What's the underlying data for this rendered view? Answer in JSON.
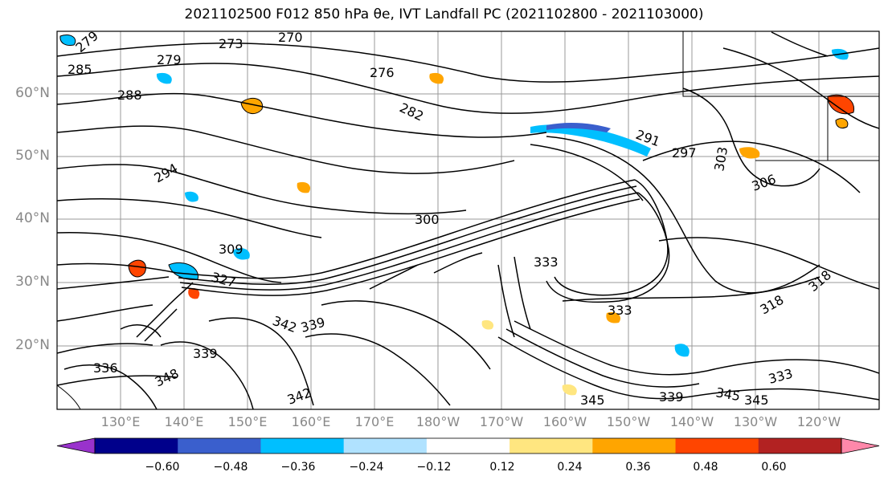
{
  "title": "2021102500 F012 850 hPa θe, IVT Landfall PC (2021102800 - 2021103000)",
  "lat_labels": [
    "60°N",
    "50°N",
    "40°N",
    "30°N",
    "20°N"
  ],
  "lon_labels": [
    "130°E",
    "140°E",
    "150°E",
    "160°E",
    "170°E",
    "180°W",
    "170°W",
    "160°W",
    "150°W",
    "140°W",
    "130°W",
    "120°W"
  ],
  "colorbar": {
    "ticks": [
      "−0.60",
      "−0.48",
      "−0.36",
      "−0.24",
      "−0.12",
      "0.12",
      "0.24",
      "0.36",
      "0.48",
      "0.60"
    ],
    "colors": [
      "#9932cc",
      "#00008b",
      "#3a5fcd",
      "#00bfff",
      "#b0e2ff",
      "#ffffff",
      "#ffe680",
      "#ffa500",
      "#ff4500",
      "#b22222",
      "#ff88aa"
    ],
    "extend": "both"
  },
  "contour_labels": [
    "279",
    "273",
    "270",
    "285",
    "279",
    "276",
    "288",
    "282",
    "291",
    "294",
    "297",
    "303",
    "306",
    "300",
    "309",
    "327",
    "333",
    "342",
    "339",
    "345",
    "348",
    "336",
    "339",
    "342",
    "345",
    "318",
    "318",
    "333",
    "333",
    "339",
    "345"
  ]
}
